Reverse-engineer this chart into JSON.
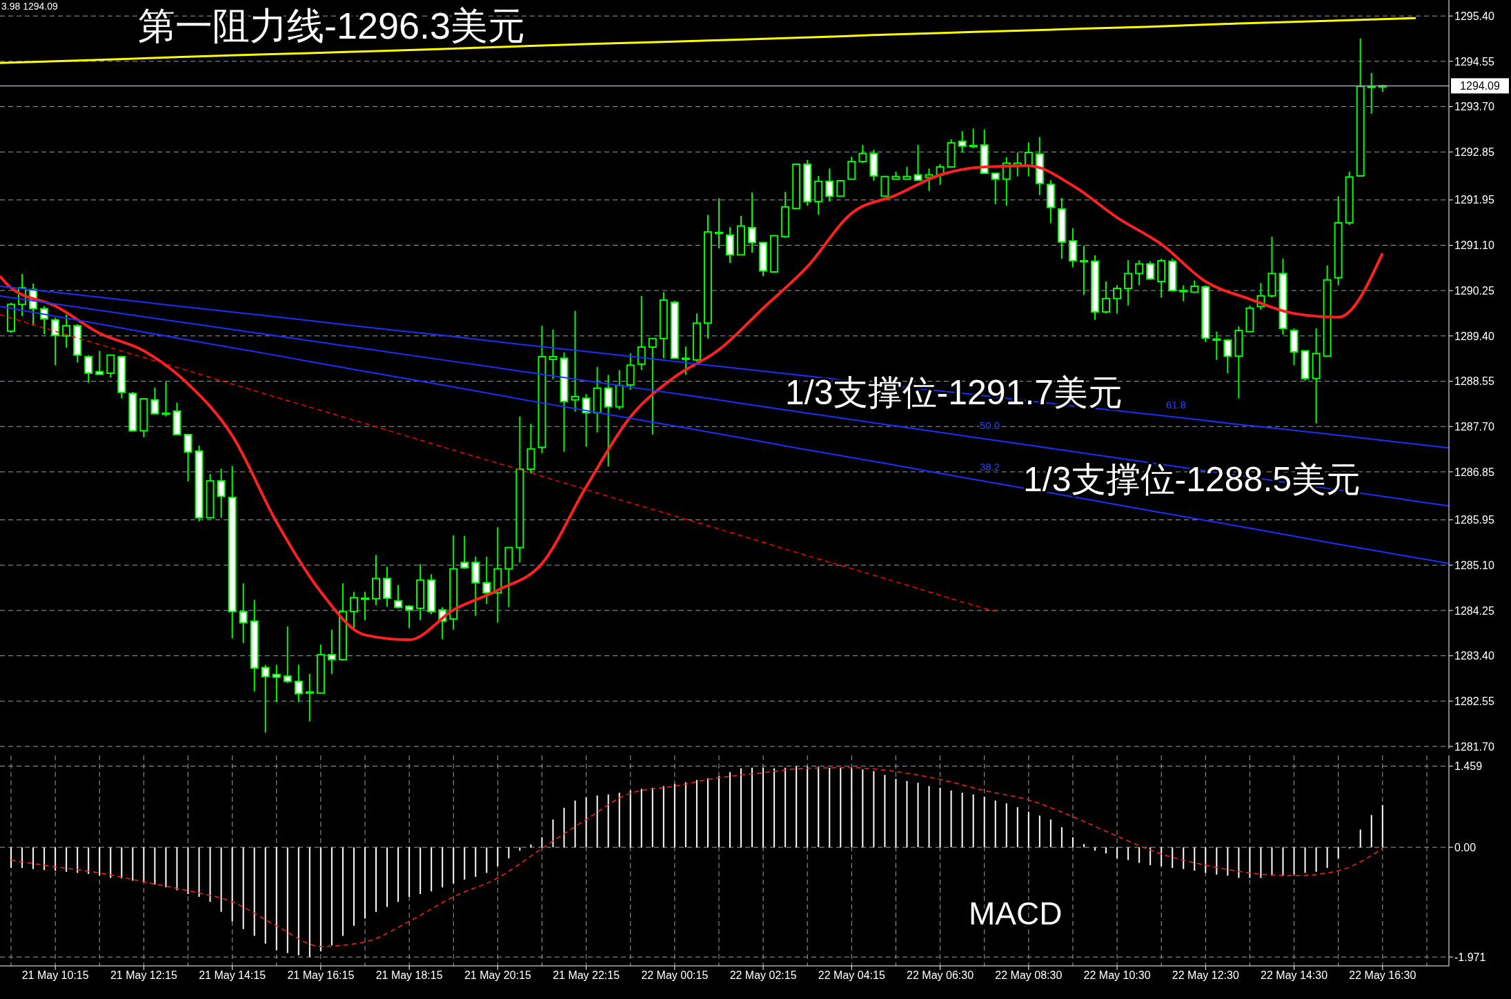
{
  "chart_data": [
    {
      "type": "candlestick",
      "color": "#00ff00",
      "categories": [
        null,
        null,
        null,
        null,
        null,
        null,
        null,
        null,
        null,
        null,
        null,
        null,
        null,
        null,
        null,
        null,
        null,
        null,
        null,
        null,
        null,
        null,
        null,
        null,
        null,
        null,
        null,
        null,
        null,
        null,
        null,
        null,
        null,
        null,
        null,
        null,
        null,
        null,
        null,
        null,
        null,
        null,
        null,
        null,
        null,
        null,
        null,
        null,
        null,
        null,
        null,
        null,
        null,
        null,
        null,
        null,
        null,
        null,
        null,
        null,
        null,
        null,
        null,
        null,
        null,
        null,
        null,
        null,
        null,
        null,
        null,
        null,
        null,
        null,
        null,
        null,
        null,
        null,
        null,
        null,
        null,
        null,
        null,
        null,
        null,
        null,
        null,
        null,
        null,
        null,
        null,
        null,
        null,
        null,
        null,
        null,
        null,
        null,
        null,
        null,
        null,
        null,
        null,
        null,
        null,
        null,
        null,
        null,
        null,
        null,
        null,
        null,
        null,
        null,
        null,
        null,
        null,
        null,
        null,
        null,
        null,
        null,
        null,
        null,
        null,
        null,
        null,
        null,
        null,
        null,
        null,
        null
      ],
      "ohlc": [
        null,
        [
          1289.49,
          1290.02,
          1289.46,
          1289.99
        ],
        [
          1289.99,
          1290.56,
          1289.77,
          1290.3
        ],
        [
          1290.27,
          1290.38,
          1289.59,
          1289.91
        ],
        [
          1289.91,
          1289.96,
          1289.43,
          1289.72
        ],
        [
          1289.7,
          1289.74,
          1288.85,
          1289.41
        ],
        [
          1289.4,
          1289.8,
          1289.18,
          1289.59
        ],
        [
          1289.59,
          1289.62,
          1288.9,
          1289.04
        ],
        [
          1289.01,
          1289.04,
          1288.52,
          1288.7
        ],
        [
          1288.73,
          1289.12,
          1288.68,
          1288.68
        ],
        [
          1288.7,
          1289.04,
          1288.62,
          1289.04
        ],
        [
          1289.01,
          1289.03,
          1288.23,
          1288.34
        ],
        [
          1288.32,
          1288.35,
          1287.62,
          1287.62
        ],
        [
          1287.62,
          1288.22,
          1287.5,
          1288.22
        ],
        [
          1288.2,
          1288.43,
          1287.94,
          1287.94
        ],
        [
          1287.95,
          1288.54,
          1287.89,
          1287.95
        ],
        [
          1287.99,
          1288.15,
          1287.55,
          1287.55
        ],
        [
          1287.55,
          1287.55,
          1286.67,
          1287.22
        ],
        [
          1287.24,
          1287.34,
          1285.92,
          1285.99
        ],
        [
          1285.99,
          1286.81,
          1285.97,
          1286.68
        ],
        [
          1286.68,
          1286.91,
          1285.99,
          1286.39
        ],
        [
          1286.37,
          1286.96,
          1283.73,
          1284.23
        ],
        [
          1284.23,
          1284.76,
          1283.64,
          1284.02
        ],
        [
          1284.05,
          1284.45,
          1282.73,
          1283.17
        ],
        [
          1283.18,
          1283.23,
          1281.96,
          1283.01
        ],
        [
          1283.05,
          1283.23,
          1282.53,
          1283.0
        ],
        [
          1283.02,
          1283.95,
          1282.89,
          1282.92
        ],
        [
          1282.92,
          1283.23,
          1282.53,
          1282.69
        ],
        [
          1282.72,
          1283.06,
          1282.17,
          1282.72
        ],
        [
          1282.7,
          1283.61,
          1282.7,
          1283.42
        ],
        [
          1283.42,
          1283.89,
          1283.06,
          1283.33
        ],
        [
          1283.33,
          1284.76,
          1283.31,
          1284.23
        ],
        [
          1284.23,
          1284.6,
          1283.92,
          1284.49
        ],
        [
          1284.48,
          1284.6,
          1284.07,
          1284.48
        ],
        [
          1284.47,
          1285.29,
          1284.35,
          1284.85
        ],
        [
          1284.85,
          1285.07,
          1284.32,
          1284.48
        ],
        [
          1284.43,
          1284.73,
          1284.29,
          1284.31
        ],
        [
          1284.33,
          1284.35,
          1283.92,
          1284.26
        ],
        [
          1284.29,
          1285.12,
          1284.07,
          1284.82
        ],
        [
          1284.82,
          1284.93,
          1284.18,
          1284.23
        ],
        [
          1284.26,
          1284.31,
          1283.71,
          1284.05
        ],
        [
          1284.09,
          1285.66,
          1283.89,
          1285.03
        ],
        [
          1285.15,
          1285.65,
          1285.03,
          1285.05
        ],
        [
          1285.15,
          1285.26,
          1284.15,
          1284.77
        ],
        [
          1284.77,
          1285.26,
          1284.37,
          1284.58
        ],
        [
          1284.58,
          1285.81,
          1284.02,
          1285.03
        ],
        [
          1285.03,
          1285.44,
          1284.31,
          1285.43
        ],
        [
          1285.43,
          1287.89,
          1285.15,
          1286.9
        ],
        [
          1286.9,
          1287.75,
          1286.82,
          1287.28
        ],
        [
          1287.31,
          1289.59,
          1287.2,
          1289.01
        ],
        [
          1288.96,
          1289.52,
          1288.59,
          1289.01
        ],
        [
          1288.98,
          1289.09,
          1287.23,
          1288.17
        ],
        [
          1288.2,
          1289.87,
          1287.98,
          1288.26
        ],
        [
          1288.23,
          1288.31,
          1287.32,
          1287.96
        ],
        [
          1287.96,
          1288.82,
          1287.59,
          1288.42
        ],
        [
          1288.42,
          1288.67,
          1286.95,
          1288.07
        ],
        [
          1288.07,
          1288.76,
          1288.02,
          1288.47
        ],
        [
          1288.48,
          1289.07,
          1288.39,
          1288.85
        ],
        [
          1288.87,
          1290.15,
          1288.76,
          1289.19
        ],
        [
          1289.19,
          1289.35,
          1287.55,
          1289.35
        ],
        [
          1289.35,
          1290.22,
          1288.98,
          1290.07
        ],
        [
          1290.03,
          1290.06,
          1288.98,
          1288.98
        ],
        [
          1288.98,
          1289.2,
          1288.67,
          1288.98
        ],
        [
          1288.95,
          1289.82,
          1288.92,
          1289.64
        ],
        [
          1289.64,
          1291.67,
          1289.35,
          1291.35
        ],
        [
          1291.34,
          1291.98,
          1291.04,
          1291.34
        ],
        [
          1291.29,
          1291.44,
          1290.77,
          1290.92
        ],
        [
          1290.92,
          1291.65,
          1290.92,
          1291.46
        ],
        [
          1291.43,
          1292.09,
          1290.96,
          1291.15
        ],
        [
          1291.15,
          1291.15,
          1290.52,
          1290.62
        ],
        [
          1290.6,
          1291.28,
          1290.6,
          1291.28
        ],
        [
          1291.26,
          1292.1,
          1291.24,
          1291.82
        ],
        [
          1291.79,
          1292.62,
          1291.79,
          1292.62
        ],
        [
          1292.62,
          1292.7,
          1291.84,
          1291.92
        ],
        [
          1291.92,
          1292.4,
          1291.67,
          1292.3
        ],
        [
          1292.3,
          1292.54,
          1291.92,
          1292.02
        ],
        [
          1292.02,
          1292.31,
          1292.02,
          1292.31
        ],
        [
          1292.34,
          1292.76,
          1292.34,
          1292.67
        ],
        [
          1292.67,
          1292.98,
          1292.64,
          1292.82
        ],
        [
          1292.82,
          1292.89,
          1292.31,
          1292.4
        ],
        [
          1292.02,
          1292.39,
          1292.02,
          1292.39
        ],
        [
          1292.34,
          1292.48,
          1292.34,
          1292.39
        ],
        [
          1292.34,
          1292.57,
          1292.34,
          1292.39
        ],
        [
          1292.42,
          1292.98,
          1292.32,
          1292.32
        ],
        [
          1292.37,
          1292.54,
          1292.12,
          1292.42
        ],
        [
          1292.42,
          1292.62,
          1292.23,
          1292.57
        ],
        [
          1292.57,
          1293.09,
          1292.57,
          1293.02
        ],
        [
          1293.05,
          1293.24,
          1292.84,
          1292.96
        ],
        [
          1292.97,
          1293.29,
          1292.92,
          1292.97
        ],
        [
          1292.98,
          1293.27,
          1292.45,
          1292.45
        ],
        [
          1292.45,
          1292.45,
          1291.87,
          1292.34
        ],
        [
          1292.34,
          1292.75,
          1291.84,
          1292.64
        ],
        [
          1292.59,
          1292.84,
          1292.39,
          1292.64
        ],
        [
          1292.59,
          1293.03,
          1292.39,
          1292.84
        ],
        [
          1292.81,
          1293.13,
          1292.04,
          1292.26
        ],
        [
          1292.24,
          1292.32,
          1291.52,
          1291.81
        ],
        [
          1291.78,
          1291.99,
          1290.85,
          1291.16
        ],
        [
          1291.18,
          1291.42,
          1290.69,
          1290.81
        ],
        [
          1290.81,
          1291.09,
          1290.17,
          1290.81
        ],
        [
          1290.8,
          1290.91,
          1289.7,
          1289.85
        ],
        [
          1289.85,
          1290.42,
          1289.82,
          1290.1
        ],
        [
          1290.1,
          1290.35,
          1289.82,
          1290.29
        ],
        [
          1290.29,
          1290.82,
          1289.97,
          1290.57
        ],
        [
          1290.57,
          1290.82,
          1290.35,
          1290.75
        ],
        [
          1290.75,
          1290.8,
          1290.45,
          1290.47
        ],
        [
          1290.42,
          1290.85,
          1290.12,
          1290.81
        ],
        [
          1290.8,
          1290.85,
          1290.23,
          1290.25
        ],
        [
          1290.25,
          1290.35,
          1290.05,
          1290.25
        ],
        [
          1290.22,
          1290.44,
          1290.21,
          1290.33
        ],
        [
          1290.32,
          1290.35,
          1289.28,
          1289.36
        ],
        [
          1289.34,
          1289.48,
          1288.95,
          1289.34
        ],
        [
          1289.32,
          1289.34,
          1288.7,
          1289.02
        ],
        [
          1289.02,
          1289.58,
          1288.23,
          1289.5
        ],
        [
          1289.48,
          1289.97,
          1289.47,
          1289.92
        ],
        [
          1289.95,
          1290.39,
          1289.89,
          1290.15
        ],
        [
          1290.15,
          1291.26,
          1290.12,
          1290.57
        ],
        [
          1290.57,
          1290.85,
          1289.42,
          1289.54
        ],
        [
          1289.5,
          1289.54,
          1288.85,
          1289.1
        ],
        [
          1289.12,
          1289.12,
          1288.56,
          1288.6
        ],
        [
          1288.6,
          1289.54,
          1287.76,
          1289.07
        ],
        [
          1289.02,
          1290.72,
          1289.02,
          1290.45
        ],
        [
          1290.49,
          1292.02,
          1290.35,
          1291.52
        ],
        [
          1291.52,
          1292.48,
          1291.48,
          1292.38
        ],
        [
          1292.4,
          1294.98,
          1292.4,
          1294.08
        ],
        [
          1294.08,
          1294.33,
          1293.57,
          1294.08
        ],
        [
          1294.08,
          1294.11,
          1293.98,
          1294.09
        ],
        null,
        null,
        null,
        null,
        null,
        null
      ],
      "series": [
        {
          "type": "line",
          "color": "#ff2020",
          "values": [
            1290.52,
            1290.3,
            null,
            null,
            null,
            1289.96,
            null,
            null,
            null,
            1289.45,
            null,
            null,
            null,
            1289.12,
            null,
            null,
            null,
            1288.5,
            null,
            null,
            null,
            1287.53,
            null,
            null,
            null,
            1285.91,
            null,
            null,
            null,
            1284.6,
            null,
            null,
            null,
            1283.79,
            null,
            null,
            null,
            1283.7,
            null,
            null,
            null,
            1284.26,
            null,
            null,
            null,
            1284.63,
            null,
            null,
            null,
            1285.13,
            null,
            null,
            null,
            1286.57,
            null,
            null,
            null,
            1287.88,
            null,
            null,
            null,
            1288.63,
            null,
            null,
            null,
            1289.14,
            null,
            null,
            null,
            1289.92,
            null,
            null,
            null,
            1290.7,
            null,
            null,
            null,
            1291.7,
            null,
            null,
            null,
            1292.04,
            null,
            null,
            null,
            1292.42,
            null,
            null,
            null,
            1292.57,
            null,
            null,
            null,
            1292.59,
            null,
            null,
            null,
            1292.22,
            null,
            null,
            null,
            1291.62,
            null,
            null,
            null,
            1291.12,
            null,
            null,
            null,
            1290.42,
            null,
            null,
            null,
            1290.09,
            null,
            null,
            null,
            1289.82,
            null,
            null,
            null,
            1289.75,
            null,
            null,
            null,
            1290.95,
            null,
            null,
            null,
            null,
            null,
            null
          ]
        },
        {
          "type": "line",
          "color": "#ffff00",
          "values": [
            1294.52,
            null,
            null,
            null,
            null,
            null,
            null,
            null,
            1294.57,
            null,
            null,
            null,
            null,
            null,
            null,
            null,
            1294.63,
            null,
            null,
            null,
            null,
            null,
            null,
            null,
            1294.68,
            null,
            null,
            null,
            null,
            null,
            null,
            null,
            1294.73,
            null,
            null,
            null,
            null,
            null,
            null,
            null,
            1294.78,
            null,
            null,
            null,
            null,
            null,
            null,
            null,
            1294.84,
            null,
            null,
            null,
            null,
            null,
            null,
            null,
            1294.89,
            null,
            null,
            null,
            null,
            null,
            null,
            null,
            1294.94,
            null,
            null,
            null,
            null,
            null,
            null,
            null,
            1294.99,
            null,
            null,
            null,
            null,
            null,
            null,
            null,
            1295.05,
            null,
            null,
            null,
            null,
            null,
            null,
            null,
            1295.1,
            null,
            null,
            null,
            null,
            null,
            null,
            null,
            1295.15,
            null,
            null,
            null,
            null,
            null,
            null,
            null,
            1295.2,
            null,
            null,
            null,
            null,
            null,
            null,
            null,
            1295.26,
            null,
            null,
            null,
            null,
            null,
            null,
            null,
            1295.31,
            null,
            null,
            null,
            null,
            null,
            null,
            null,
            1295.36,
            null,
            null,
            null
          ]
        },
        {
          "type": "line",
          "color": "#1a30ff",
          "values": [
            1290.33,
            null,
            null,
            null,
            null,
            null,
            null,
            null,
            1290.15,
            null,
            null,
            null,
            null,
            null,
            null,
            null,
            1289.96,
            null,
            null,
            null,
            null,
            null,
            null,
            null,
            1289.78,
            null,
            null,
            null,
            null,
            null,
            null,
            null,
            1289.59,
            null,
            null,
            null,
            null,
            null,
            null,
            null,
            1289.41,
            null,
            null,
            null,
            null,
            null,
            null,
            null,
            1289.22,
            null,
            null,
            null,
            null,
            null,
            null,
            null,
            1289.04,
            null,
            null,
            null,
            null,
            null,
            null,
            null,
            1288.85,
            null,
            null,
            null,
            null,
            null,
            null,
            null,
            1288.67,
            null,
            null,
            null,
            null,
            null,
            null,
            null,
            1288.48,
            null,
            null,
            null,
            null,
            null,
            null,
            null,
            1288.3,
            null,
            null,
            null,
            null,
            null,
            null,
            null,
            1288.11,
            null,
            null,
            null,
            null,
            null,
            null,
            null,
            1287.93,
            null,
            null,
            null,
            null,
            null,
            null,
            null,
            1287.74,
            null,
            null,
            null,
            null,
            null,
            null,
            null,
            1287.56,
            null,
            null,
            null,
            null,
            null,
            null,
            null,
            1287.37,
            null,
            null,
            1287.3
          ]
        },
        {
          "type": "line",
          "color": "#1a30ff",
          "values": [
            1290.15,
            null,
            null,
            null,
            null,
            null,
            null,
            null,
            1289.91,
            null,
            null,
            null,
            null,
            null,
            null,
            null,
            1289.67,
            null,
            null,
            null,
            null,
            null,
            null,
            null,
            1289.43,
            null,
            null,
            null,
            null,
            null,
            null,
            null,
            1289.19,
            null,
            null,
            null,
            null,
            null,
            null,
            null,
            1288.95,
            null,
            null,
            null,
            null,
            null,
            null,
            null,
            1288.71,
            null,
            null,
            null,
            null,
            null,
            null,
            null,
            1288.47,
            null,
            null,
            null,
            null,
            null,
            null,
            null,
            1288.23,
            null,
            null,
            null,
            null,
            null,
            null,
            null,
            1287.98,
            null,
            null,
            null,
            null,
            null,
            null,
            null,
            1287.74,
            null,
            null,
            null,
            null,
            null,
            null,
            null,
            1287.5,
            null,
            null,
            null,
            null,
            null,
            null,
            null,
            1287.26,
            null,
            null,
            null,
            null,
            null,
            null,
            null,
            1287.02,
            null,
            null,
            null,
            null,
            null,
            null,
            null,
            1286.78,
            null,
            null,
            null,
            null,
            null,
            null,
            null,
            1286.54,
            null,
            null,
            null,
            null,
            null,
            null,
            null,
            1286.3,
            null,
            null,
            1286.21
          ]
        },
        {
          "type": "line",
          "color": "#1a30ff",
          "values": [
            1289.95,
            null,
            null,
            null,
            null,
            null,
            null,
            null,
            1289.66,
            null,
            null,
            null,
            null,
            null,
            null,
            null,
            1289.36,
            null,
            null,
            null,
            null,
            null,
            null,
            null,
            1289.07,
            null,
            null,
            null,
            null,
            null,
            null,
            null,
            1288.77,
            null,
            null,
            null,
            null,
            null,
            null,
            null,
            1288.48,
            null,
            null,
            null,
            null,
            null,
            null,
            null,
            1288.18,
            null,
            null,
            null,
            null,
            null,
            null,
            null,
            1287.89,
            null,
            null,
            null,
            null,
            null,
            null,
            null,
            1287.6,
            null,
            null,
            null,
            null,
            null,
            null,
            null,
            1287.3,
            null,
            null,
            null,
            null,
            null,
            null,
            null,
            1287.01,
            null,
            null,
            null,
            null,
            null,
            null,
            null,
            1286.71,
            null,
            null,
            null,
            null,
            null,
            null,
            null,
            1286.42,
            null,
            null,
            null,
            null,
            null,
            null,
            null,
            1286.12,
            null,
            null,
            null,
            null,
            null,
            null,
            null,
            1285.83,
            null,
            null,
            null,
            null,
            null,
            null,
            null,
            1285.53,
            null,
            null,
            null,
            null,
            null,
            null,
            null,
            1285.24,
            null,
            null,
            1285.13
          ]
        },
        {
          "type": "line",
          "color": "#ff0000",
          "line_style": "dashed",
          "values": [
            1289.8,
            null,
            null,
            null,
            null,
            null,
            null,
            null,
            1289.3,
            null,
            null,
            null,
            null,
            null,
            null,
            null,
            1288.81,
            null,
            null,
            null,
            null,
            null,
            null,
            null,
            1288.31,
            null,
            null,
            null,
            null,
            null,
            null,
            null,
            1287.82,
            null,
            null,
            null,
            null,
            null,
            null,
            null,
            1287.32,
            null,
            null,
            null,
            null,
            null,
            null,
            null,
            1286.83,
            null,
            null,
            null,
            null,
            null,
            null,
            null,
            1286.33,
            null,
            null,
            null,
            null,
            null,
            null,
            null,
            1285.84,
            null,
            null,
            null,
            null,
            null,
            null,
            null,
            1285.34,
            null,
            null,
            null,
            null,
            null,
            null,
            null,
            1284.85,
            null,
            null,
            null,
            null,
            null,
            null,
            null,
            1284.35,
            null,
            1284.23,
            null,
            null,
            null,
            null,
            null,
            null,
            null,
            null,
            null,
            null,
            null,
            null,
            null,
            null,
            null,
            null,
            null,
            null,
            null,
            null,
            null,
            null,
            null,
            null,
            null,
            null,
            null,
            null,
            null,
            null,
            null,
            null,
            null,
            null,
            null,
            null,
            null,
            null,
            null,
            null,
            null
          ]
        }
      ],
      "ylim": [
        1281.66,
        1295.7
      ],
      "yticks": [
        {
          "value": 1281.7,
          "label": "1281.70"
        },
        1282.55,
        {
          "value": 1283.4,
          "label": "1283.40"
        },
        1284.25,
        {
          "value": 1285.1,
          "label": "1285.10"
        },
        1285.95,
        1286.85,
        {
          "value": 1287.7,
          "label": "1287.70"
        },
        1288.55,
        {
          "value": 1289.4,
          "label": "1289.40"
        },
        1290.25,
        {
          "value": 1291.1,
          "label": "1291.10"
        },
        1291.95,
        1292.85,
        {
          "value": 1293.7,
          "label": "1293.70"
        },
        1294.55,
        {
          "value": 1295.4,
          "label": "1295.40"
        }
      ],
      "ref_lines": [
        {
          "axis": "y",
          "value": 1294.09,
          "label": "1294.09",
          "color": "#a0a8b0"
        }
      ],
      "annotations": [
        "3.98 1294.09",
        "第一阻力线-1296.3美元",
        "1/3支撑位-1291.7美元",
        "61.8",
        "50.0",
        "38.2",
        "1/3支撑位-1288.5美元"
      ],
      "grid": true,
      "tick_labels": "y"
    },
    {
      "type": "bar",
      "categories": [
        null,
        null,
        null,
        null,
        null,
        "21 May 10:15",
        null,
        null,
        null,
        null,
        null,
        null,
        null,
        "21 May 12:15",
        null,
        null,
        null,
        null,
        null,
        null,
        null,
        "21 May 14:15",
        null,
        null,
        null,
        null,
        null,
        null,
        null,
        "21 May 16:15",
        null,
        null,
        null,
        null,
        null,
        null,
        null,
        "21 May 18:15",
        null,
        null,
        null,
        null,
        null,
        null,
        null,
        "21 May 20:15",
        null,
        null,
        null,
        null,
        null,
        null,
        null,
        "21 May 22:15",
        null,
        null,
        null,
        null,
        null,
        null,
        null,
        "22 May 00:15",
        null,
        null,
        null,
        null,
        null,
        null,
        null,
        "22 May 02:15",
        null,
        null,
        null,
        null,
        null,
        null,
        null,
        "22 May 04:15",
        null,
        null,
        null,
        null,
        null,
        null,
        null,
        "22 May 06:30",
        null,
        null,
        null,
        null,
        null,
        null,
        null,
        "22 May 08:30",
        null,
        null,
        null,
        null,
        null,
        null,
        null,
        "22 May 10:30",
        null,
        null,
        null,
        null,
        null,
        null,
        null,
        "22 May 12:30",
        null,
        null,
        null,
        null,
        null,
        null,
        null,
        "22 May 14:30",
        null,
        null,
        null,
        null,
        null,
        null,
        null,
        "22 May 16:30",
        null,
        null,
        null,
        null,
        null,
        null
      ],
      "series": [
        {
          "type": "bar",
          "color": "#ffffff",
          "values": [
            null,
            -0.37,
            -0.37,
            -0.39,
            -0.41,
            -0.42,
            -0.44,
            -0.46,
            -0.48,
            -0.51,
            -0.55,
            -0.56,
            -0.6,
            -0.63,
            -0.67,
            -0.72,
            -0.77,
            -0.84,
            -0.89,
            -0.98,
            -1.16,
            -1.33,
            -1.47,
            -1.59,
            -1.73,
            -1.85,
            -1.9,
            -1.94,
            -1.97,
            -1.87,
            -1.76,
            -1.59,
            -1.41,
            -1.28,
            -1.16,
            -1.07,
            -0.98,
            -0.89,
            -0.84,
            -0.79,
            -0.72,
            -0.65,
            -0.58,
            -0.53,
            -0.46,
            -0.34,
            -0.2,
            -0.06,
            0.05,
            0.18,
            0.5,
            0.71,
            0.84,
            0.9,
            0.93,
            0.95,
            0.98,
            1.02,
            1.05,
            1.07,
            1.1,
            1.14,
            1.17,
            1.21,
            1.24,
            1.28,
            1.35,
            1.42,
            1.43,
            1.43,
            1.42,
            1.43,
            1.45,
            1.45,
            1.45,
            1.43,
            1.43,
            1.42,
            1.4,
            1.37,
            1.3,
            1.23,
            1.19,
            1.16,
            1.1,
            1.07,
            1.02,
            0.98,
            0.95,
            0.91,
            0.84,
            0.79,
            0.72,
            0.64,
            0.57,
            0.5,
            0.36,
            0.18,
            0.06,
            -0.06,
            -0.11,
            -0.2,
            -0.23,
            -0.28,
            -0.32,
            -0.34,
            -0.37,
            -0.39,
            -0.42,
            -0.46,
            -0.49,
            -0.51,
            -0.55,
            -0.55,
            -0.55,
            -0.51,
            -0.51,
            -0.49,
            -0.46,
            -0.44,
            -0.37,
            -0.2,
            -0.02,
            0.32,
            0.58,
            0.76,
            null,
            null,
            null,
            null,
            null,
            null
          ]
        },
        {
          "type": "line",
          "color": "#ff2020",
          "line_style": "dashed",
          "values": [
            null,
            -0.23,
            null,
            null,
            null,
            -0.35,
            null,
            null,
            null,
            -0.46,
            null,
            null,
            null,
            -0.62,
            null,
            null,
            null,
            -0.78,
            null,
            null,
            null,
            -0.98,
            null,
            null,
            null,
            -1.41,
            null,
            null,
            null,
            -1.78,
            null,
            null,
            null,
            -1.7,
            null,
            null,
            null,
            -1.33,
            null,
            null,
            null,
            -0.89,
            null,
            null,
            null,
            -0.55,
            null,
            null,
            null,
            -0.02,
            null,
            null,
            null,
            0.5,
            null,
            null,
            null,
            0.97,
            null,
            null,
            null,
            1.1,
            null,
            null,
            null,
            1.25,
            null,
            null,
            null,
            1.34,
            null,
            null,
            null,
            1.42,
            null,
            null,
            null,
            1.43,
            null,
            null,
            null,
            1.36,
            null,
            null,
            null,
            1.22,
            null,
            null,
            null,
            1.02,
            null,
            null,
            null,
            0.85,
            null,
            null,
            null,
            0.55,
            null,
            null,
            null,
            0.2,
            null,
            null,
            null,
            -0.12,
            null,
            null,
            null,
            -0.32,
            null,
            null,
            null,
            -0.46,
            null,
            null,
            null,
            -0.51,
            null,
            null,
            null,
            -0.42,
            null,
            null,
            null,
            -0.02,
            null,
            null,
            null,
            null,
            null,
            null
          ]
        }
      ],
      "ylim": [
        -2.13,
        1.65
      ],
      "yticks": [
        -1.971,
        {
          "value": 0,
          "label": "0.00"
        },
        1.459
      ],
      "annotations": [
        "MACD"
      ],
      "grid": true
    }
  ]
}
